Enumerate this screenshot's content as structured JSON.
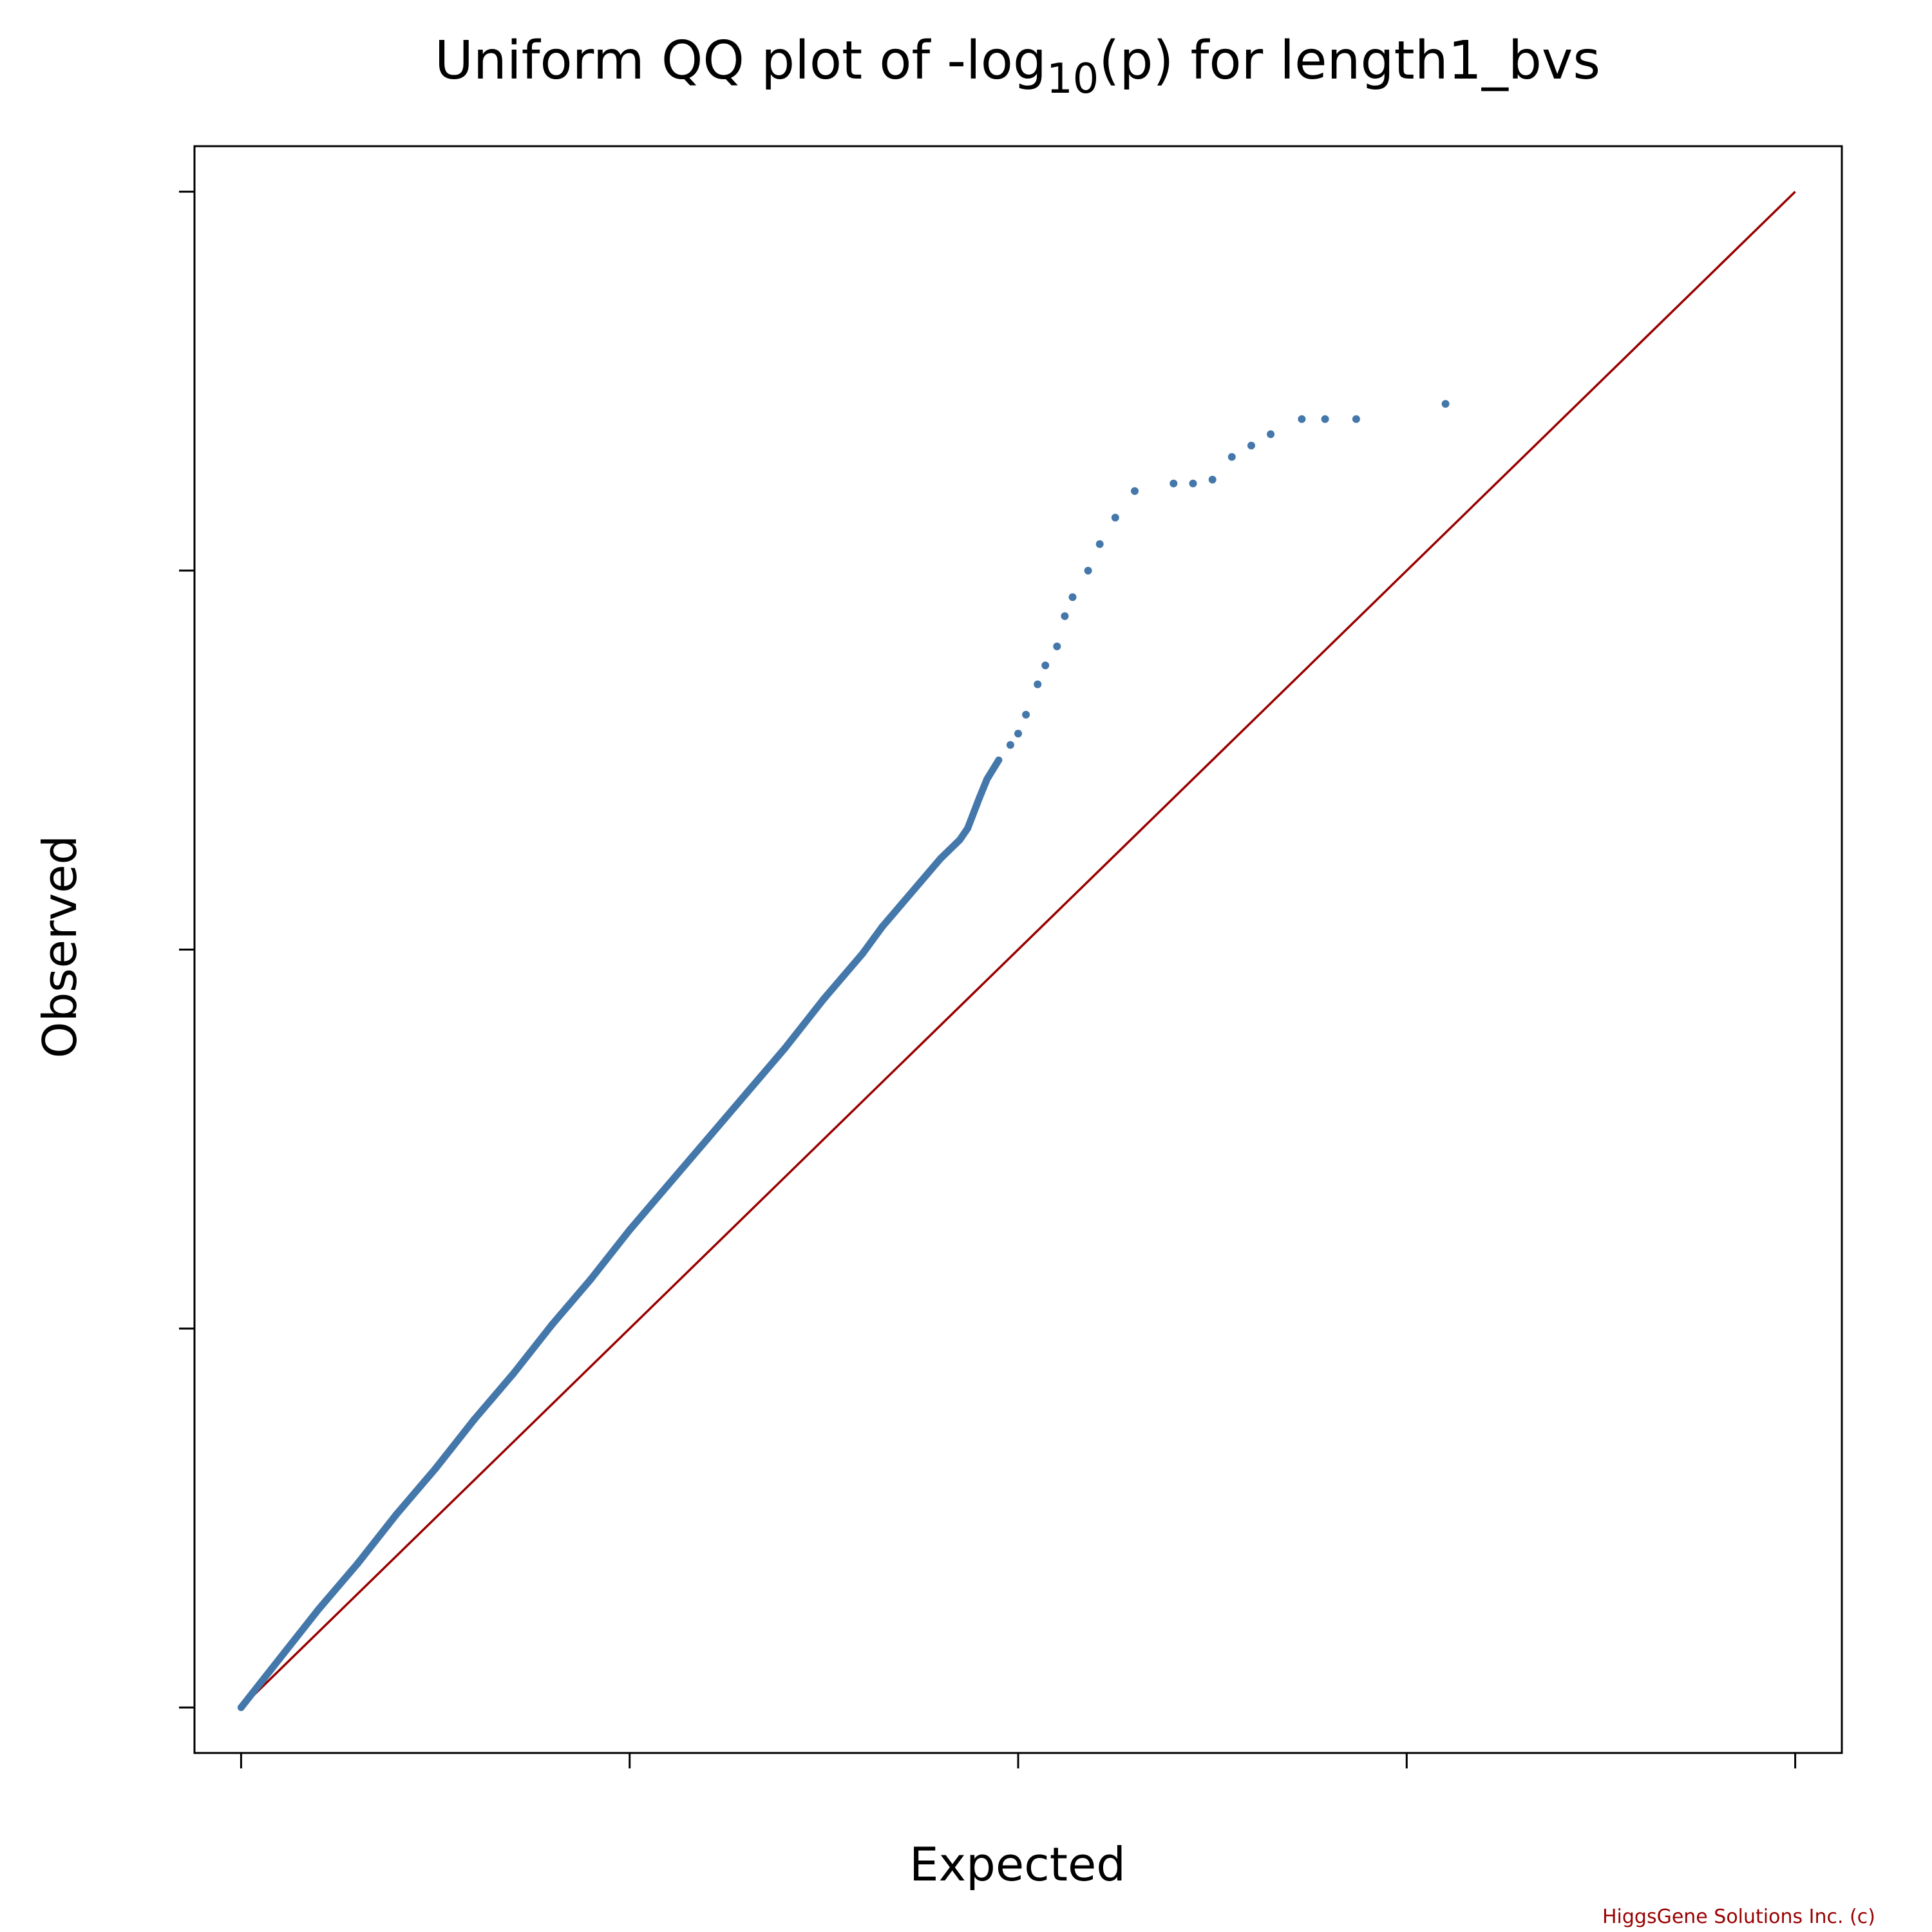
{
  "chart_data": {
    "type": "scatter",
    "title": {
      "prefix": "Uniform QQ plot of -log",
      "subscript": "10",
      "suffix": "(p) for length1_bvs"
    },
    "xlabel": "Expected",
    "ylabel": "Observed",
    "xlim": [
      -0.12,
      4.12
    ],
    "ylim": [
      -0.12,
      4.12
    ],
    "x_ticks": [
      0,
      1,
      2,
      3,
      4
    ],
    "y_ticks": [
      0,
      1,
      2,
      3,
      4
    ],
    "tick_labels_shown": false,
    "grid": false,
    "legend": "none",
    "reference_line": {
      "name": "y = x",
      "from": [
        0,
        0
      ],
      "to": [
        4,
        4
      ],
      "color": "#990000"
    },
    "series": [
      {
        "marker_color": "#4477aa",
        "points": [
          [
            0.0,
            0.0
          ],
          [
            0.1,
            0.13
          ],
          [
            0.2,
            0.26
          ],
          [
            0.3,
            0.38
          ],
          [
            0.4,
            0.51
          ],
          [
            0.5,
            0.63
          ],
          [
            0.6,
            0.76
          ],
          [
            0.7,
            0.88
          ],
          [
            0.8,
            1.01
          ],
          [
            0.9,
            1.13
          ],
          [
            1.0,
            1.26
          ],
          [
            1.1,
            1.38
          ],
          [
            1.2,
            1.5
          ],
          [
            1.3,
            1.62
          ],
          [
            1.4,
            1.74
          ],
          [
            1.5,
            1.87
          ],
          [
            1.6,
            1.99
          ],
          [
            1.65,
            2.06
          ],
          [
            1.7,
            2.12
          ],
          [
            1.75,
            2.18
          ],
          [
            1.8,
            2.24
          ],
          [
            1.85,
            2.29
          ],
          [
            1.87,
            2.32
          ],
          [
            1.9,
            2.4
          ],
          [
            1.92,
            2.45
          ],
          [
            1.95,
            2.5
          ],
          [
            1.98,
            2.54
          ],
          [
            2.0,
            2.57
          ],
          [
            2.02,
            2.62
          ],
          [
            2.05,
            2.7
          ],
          [
            2.07,
            2.75
          ],
          [
            2.1,
            2.8
          ],
          [
            2.12,
            2.88
          ],
          [
            2.14,
            2.93
          ],
          [
            2.18,
            3.0
          ],
          [
            2.21,
            3.07
          ],
          [
            2.25,
            3.14
          ],
          [
            2.3,
            3.21
          ],
          [
            2.4,
            3.23
          ],
          [
            2.45,
            3.23
          ],
          [
            2.5,
            3.24
          ],
          [
            2.55,
            3.3
          ],
          [
            2.6,
            3.33
          ],
          [
            2.65,
            3.36
          ],
          [
            2.73,
            3.4
          ],
          [
            2.79,
            3.4
          ],
          [
            2.87,
            3.4
          ],
          [
            3.1,
            3.44
          ]
        ]
      }
    ]
  },
  "credit": {
    "text": "HiggsGene Solutions Inc. (c)",
    "color": "#990000"
  },
  "colors": {
    "axis": "#000000",
    "points": "#4477aa",
    "reference_line": "#990000"
  }
}
